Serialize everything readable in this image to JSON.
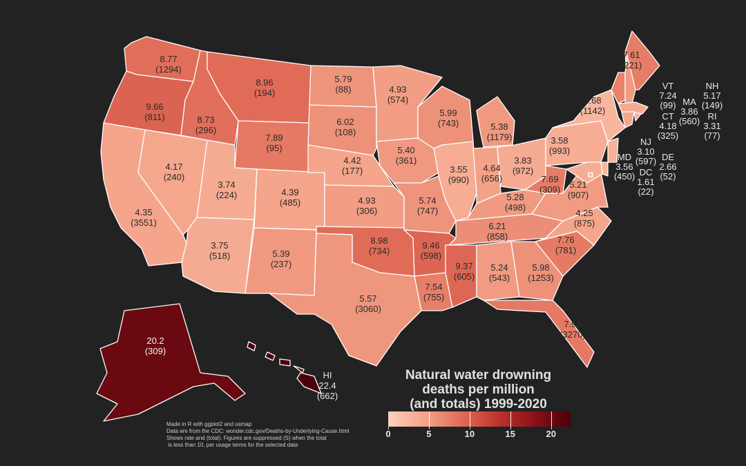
{
  "title_lines": [
    "Natural water drowning",
    "deaths per million",
    "(and totals) 1999-2020"
  ],
  "notes": [
    "Made in R with ggplot2 and usmap",
    "Data are from the CDC: wonder.cdc.gov/Deaths-by-Underlying-Cause.html",
    "Shows rate and (total). Figures are suppressed (S) when the total",
    " is less than 10, per usage terms for the selected data"
  ],
  "legend": {
    "ticks": [
      "0",
      "5",
      "10",
      "15",
      "20"
    ],
    "tick_values": [
      0,
      5,
      10,
      15,
      20
    ],
    "min": 0,
    "max": 22.4,
    "colors": [
      "#fdd1bc",
      "#f4a48a",
      "#e06c58",
      "#c0332d",
      "#8b1218",
      "#4a0008"
    ]
  },
  "states": [
    {
      "id": "WA",
      "rate": "8.77",
      "total": "(1294)",
      "value": 8.77
    },
    {
      "id": "OR",
      "rate": "9.66",
      "total": "(811)",
      "value": 9.66
    },
    {
      "id": "CA",
      "rate": "4.35",
      "total": "(3551)",
      "value": 4.35
    },
    {
      "id": "NV",
      "rate": "4.17",
      "total": "(240)",
      "value": 4.17
    },
    {
      "id": "ID",
      "rate": "8.73",
      "total": "(296)",
      "value": 8.73
    },
    {
      "id": "MT",
      "rate": "8.96",
      "total": "(194)",
      "value": 8.96
    },
    {
      "id": "WY",
      "rate": "7.89",
      "total": "(95)",
      "value": 7.89
    },
    {
      "id": "UT",
      "rate": "3.74",
      "total": "(224)",
      "value": 3.74
    },
    {
      "id": "AZ",
      "rate": "3.75",
      "total": "(518)",
      "value": 3.75
    },
    {
      "id": "CO",
      "rate": "4.39",
      "total": "(485)",
      "value": 4.39
    },
    {
      "id": "NM",
      "rate": "5.39",
      "total": "(237)",
      "value": 5.39
    },
    {
      "id": "ND",
      "rate": "5.79",
      "total": "(88)",
      "value": 5.79
    },
    {
      "id": "SD",
      "rate": "6.02",
      "total": "(108)",
      "value": 6.02
    },
    {
      "id": "NE",
      "rate": "4.42",
      "total": "(177)",
      "value": 4.42
    },
    {
      "id": "KS",
      "rate": "4.93",
      "total": "(306)",
      "value": 4.93
    },
    {
      "id": "OK",
      "rate": "8.98",
      "total": "(734)",
      "value": 8.98
    },
    {
      "id": "TX",
      "rate": "5.57",
      "total": "(3060)",
      "value": 5.57
    },
    {
      "id": "MN",
      "rate": "4.93",
      "total": "(574)",
      "value": 4.93
    },
    {
      "id": "IA",
      "rate": "5.40",
      "total": "(361)",
      "value": 5.4
    },
    {
      "id": "MO",
      "rate": "5.74",
      "total": "(747)",
      "value": 5.74
    },
    {
      "id": "AR",
      "rate": "9.46",
      "total": "(598)",
      "value": 9.46
    },
    {
      "id": "LA",
      "rate": "7.54",
      "total": "(755)",
      "value": 7.54
    },
    {
      "id": "WI",
      "rate": "5.99",
      "total": "(743)",
      "value": 5.99
    },
    {
      "id": "IL",
      "rate": "3.55",
      "total": "(990)",
      "value": 3.55
    },
    {
      "id": "MI",
      "rate": "5.38",
      "total": "(1179)",
      "value": 5.38
    },
    {
      "id": "IN",
      "rate": "4.64",
      "total": "(656)",
      "value": 4.64
    },
    {
      "id": "OH",
      "rate": "3.83",
      "total": "(972)",
      "value": 3.83
    },
    {
      "id": "KY",
      "rate": "5.28",
      "total": "(498)",
      "value": 5.28
    },
    {
      "id": "TN",
      "rate": "6.21",
      "total": "(858)",
      "value": 6.21
    },
    {
      "id": "MS",
      "rate": "9.37",
      "total": "(605)",
      "value": 9.37
    },
    {
      "id": "AL",
      "rate": "5.24",
      "total": "(543)",
      "value": 5.24
    },
    {
      "id": "GA",
      "rate": "5.98",
      "total": "(1253)",
      "value": 5.98
    },
    {
      "id": "FL",
      "rate": "7.90",
      "total": "(3270)",
      "value": 7.9
    },
    {
      "id": "SC",
      "rate": "7.76",
      "total": "(781)",
      "value": 7.76
    },
    {
      "id": "NC",
      "rate": "4.25",
      "total": "(875)",
      "value": 4.25
    },
    {
      "id": "VA",
      "rate": "5.21",
      "total": "(907)",
      "value": 5.21
    },
    {
      "id": "WV",
      "rate": "7.69",
      "total": "(309)",
      "value": 7.69
    },
    {
      "id": "PA",
      "rate": "3.58",
      "total": "(993)",
      "value": 3.58
    },
    {
      "id": "NY",
      "rate": "2.68",
      "total": "(1142)",
      "value": 2.68
    },
    {
      "id": "ME",
      "rate": "7.61",
      "total": "(221)",
      "value": 7.61
    },
    {
      "id": "AK",
      "rate": "20.2",
      "total": "(309)",
      "value": 20.2
    },
    {
      "id": "HI",
      "rate": "22.4",
      "total": "(662)",
      "value": 22.4,
      "name": "HI"
    },
    {
      "id": "VT",
      "rate": "7.24",
      "total": "(99)",
      "value": 7.24,
      "name": "VT"
    },
    {
      "id": "NH",
      "rate": "5.17",
      "total": "(149)",
      "value": 5.17,
      "name": "NH"
    },
    {
      "id": "MA",
      "rate": "3.86",
      "total": "(560)",
      "value": 3.86,
      "name": "MA"
    },
    {
      "id": "CT",
      "rate": "4.18",
      "total": "(325)",
      "value": 4.18,
      "name": "CT"
    },
    {
      "id": "RI",
      "rate": "3.31",
      "total": "(77)",
      "value": 3.31,
      "name": "RI"
    },
    {
      "id": "NJ",
      "rate": "3.10",
      "total": "(597)",
      "value": 3.1,
      "name": "NJ"
    },
    {
      "id": "MD",
      "rate": "3.56",
      "total": "(450)",
      "value": 3.56,
      "name": "MD"
    },
    {
      "id": "DE",
      "rate": "2.66",
      "total": "(52)",
      "value": 2.66,
      "name": "DE"
    },
    {
      "id": "DC",
      "rate": "1.61",
      "total": "(22)",
      "value": 1.61,
      "name": "DC"
    }
  ]
}
